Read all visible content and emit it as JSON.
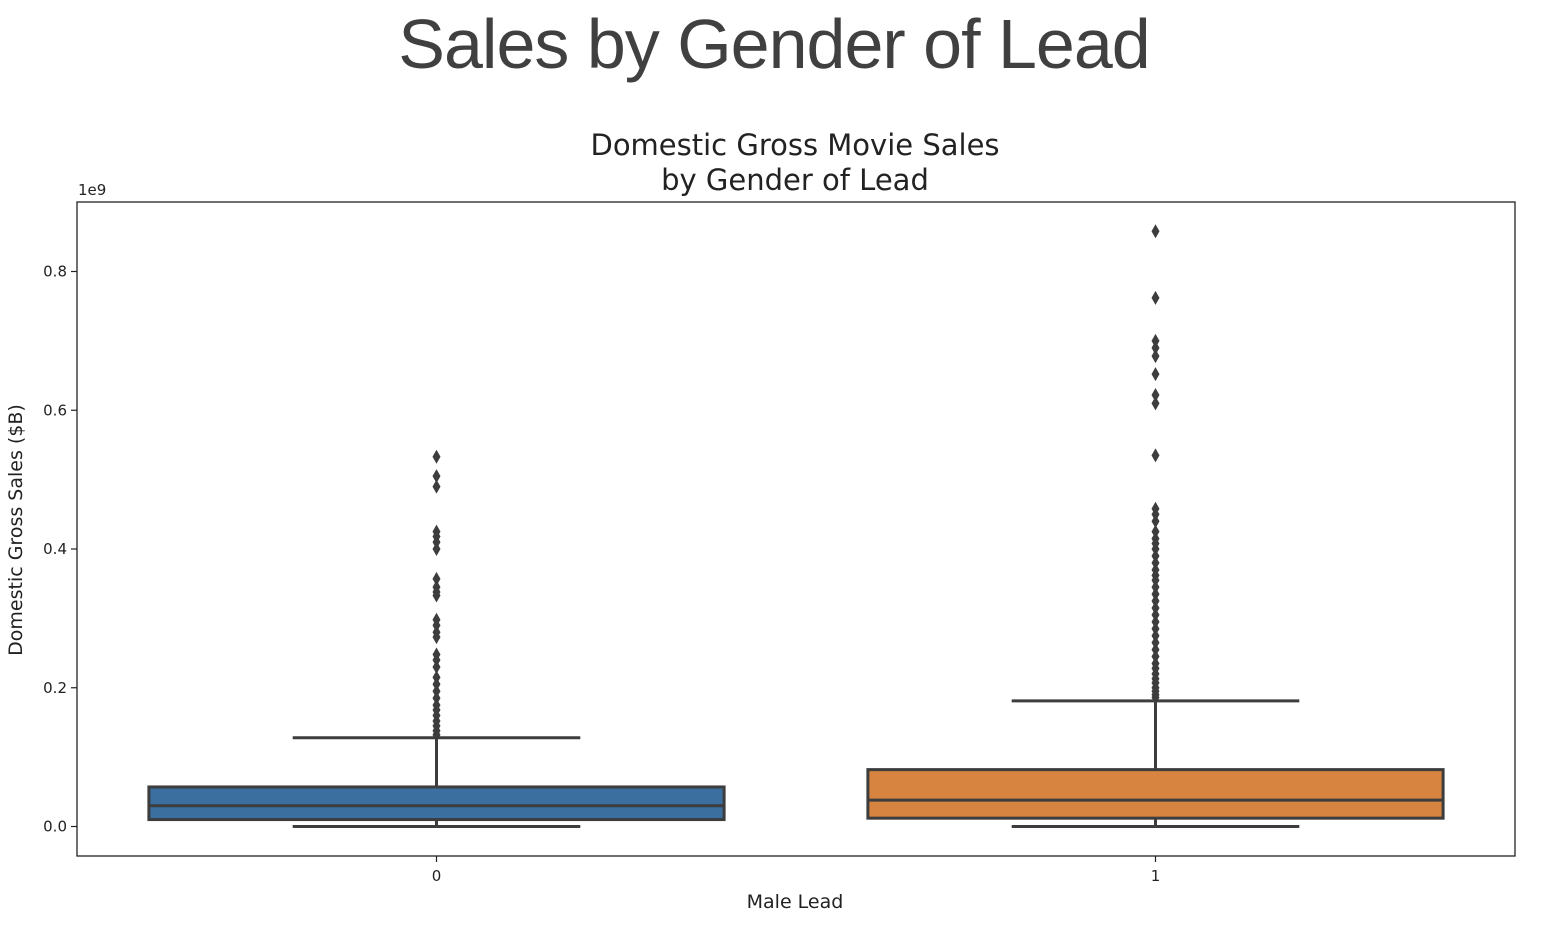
{
  "slide": {
    "title": "Sales by Gender of Lead"
  },
  "chart_data": {
    "type": "box",
    "title_lines": [
      "Domestic Gross Movie Sales",
      "by Gender of Lead"
    ],
    "xlabel": "Male Lead",
    "ylabel": "Domestic Gross Sales ($B)",
    "y_offset_label": "1e9",
    "ylim": [
      -0.043,
      0.9
    ],
    "yticks": [
      0.0,
      0.2,
      0.4,
      0.6,
      0.8
    ],
    "ytick_labels": [
      "0.0",
      "0.2",
      "0.4",
      "0.6",
      "0.8"
    ],
    "categories": [
      "0",
      "1"
    ],
    "grid": false,
    "boxes": [
      {
        "category": "0",
        "color": "#3a6f9f",
        "whisker_low": 0.0,
        "q1": 0.01,
        "median": 0.03,
        "q3": 0.057,
        "whisker_high": 0.128,
        "outliers": [
          0.533,
          0.505,
          0.49,
          0.425,
          0.418,
          0.41,
          0.4,
          0.357,
          0.345,
          0.338,
          0.333,
          0.298,
          0.29,
          0.28,
          0.273,
          0.248,
          0.24,
          0.23,
          0.215,
          0.205,
          0.195,
          0.185,
          0.175,
          0.168,
          0.16,
          0.152,
          0.145,
          0.138,
          0.132
        ]
      },
      {
        "category": "1",
        "color": "#d6843f",
        "whisker_low": 0.0,
        "q1": 0.012,
        "median": 0.038,
        "q3": 0.082,
        "whisker_high": 0.181,
        "outliers": [
          0.858,
          0.762,
          0.7,
          0.69,
          0.678,
          0.652,
          0.622,
          0.61,
          0.535,
          0.458,
          0.45,
          0.44,
          0.425,
          0.415,
          0.408,
          0.4,
          0.39,
          0.38,
          0.37,
          0.362,
          0.355,
          0.345,
          0.335,
          0.325,
          0.315,
          0.305,
          0.295,
          0.285,
          0.275,
          0.265,
          0.255,
          0.245,
          0.235,
          0.228,
          0.22,
          0.213,
          0.207,
          0.2,
          0.195,
          0.19,
          0.186
        ]
      }
    ]
  }
}
